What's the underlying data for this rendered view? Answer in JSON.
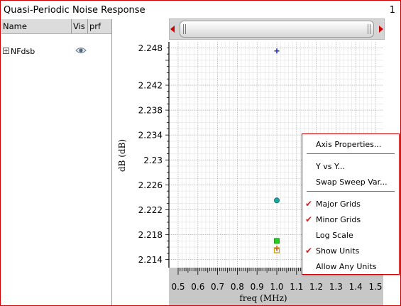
{
  "window": {
    "title": "Quasi-Periodic Noise Response",
    "panel_number": "1"
  },
  "sidebar": {
    "columns": [
      "Name",
      "Vis",
      "prf"
    ],
    "traces": [
      {
        "name": "NFdsb",
        "visible": true,
        "expand_symbol": "+"
      }
    ]
  },
  "chart_data": {
    "type": "scatter",
    "xlabel": "freq (MHz)",
    "ylabel": "dB (dB)",
    "xlim": [
      0.5,
      1.5
    ],
    "ylim": [
      2.2135,
      2.2485
    ],
    "x_ticks": [
      "0.5",
      "0.6",
      "0.7",
      "0.8",
      "0.9",
      "1.0",
      "1.1",
      "1.2",
      "1.3",
      "1.4",
      "1.5"
    ],
    "x_tick_values": [
      0.5,
      0.6,
      0.7,
      0.8,
      0.9,
      1.0,
      1.1,
      1.2,
      1.3,
      1.4,
      1.5
    ],
    "y_ticks": [
      "2.214",
      "2.218",
      "2.222",
      "2.226",
      "2.23",
      "2.234",
      "2.238",
      "2.242",
      "2.248"
    ],
    "y_tick_values": [
      2.214,
      2.218,
      2.222,
      2.226,
      2.23,
      2.234,
      2.238,
      2.242,
      2.248
    ],
    "grid": {
      "major": true,
      "minor": true
    },
    "points": [
      {
        "x": 1.0,
        "y": 2.2475,
        "marker": "plus",
        "color": "#2233bb"
      },
      {
        "x": 1.0,
        "y": 2.2235,
        "marker": "circle",
        "color": "#1aa8a0"
      },
      {
        "x": 1.0,
        "y": 2.217,
        "marker": "square",
        "color": "#22cc22"
      },
      {
        "x": 1.0,
        "y": 2.2158,
        "marker": "plus",
        "color": "#cc4422"
      },
      {
        "x": 1.0,
        "y": 2.2155,
        "marker": "open-square",
        "color": "#c8a000"
      }
    ]
  },
  "context_menu": {
    "items": [
      {
        "label": "Axis Properties...",
        "checked": false
      },
      {
        "label": "Y vs Y...",
        "checked": false
      },
      {
        "label": "Swap Sweep Var...",
        "checked": false
      },
      {
        "label": "Major Grids",
        "checked": true
      },
      {
        "label": "Minor Grids",
        "checked": true
      },
      {
        "label": "Log Scale",
        "checked": false
      },
      {
        "label": "Show Units",
        "checked": true
      },
      {
        "label": "Allow Any Units",
        "checked": false
      }
    ]
  },
  "colors": {
    "accent": "#cc0000",
    "check": "#cc2222"
  },
  "icons": {
    "scroll_left": "arrow-left-icon",
    "scroll_right": "arrow-right-icon",
    "visibility": "eye-icon"
  }
}
